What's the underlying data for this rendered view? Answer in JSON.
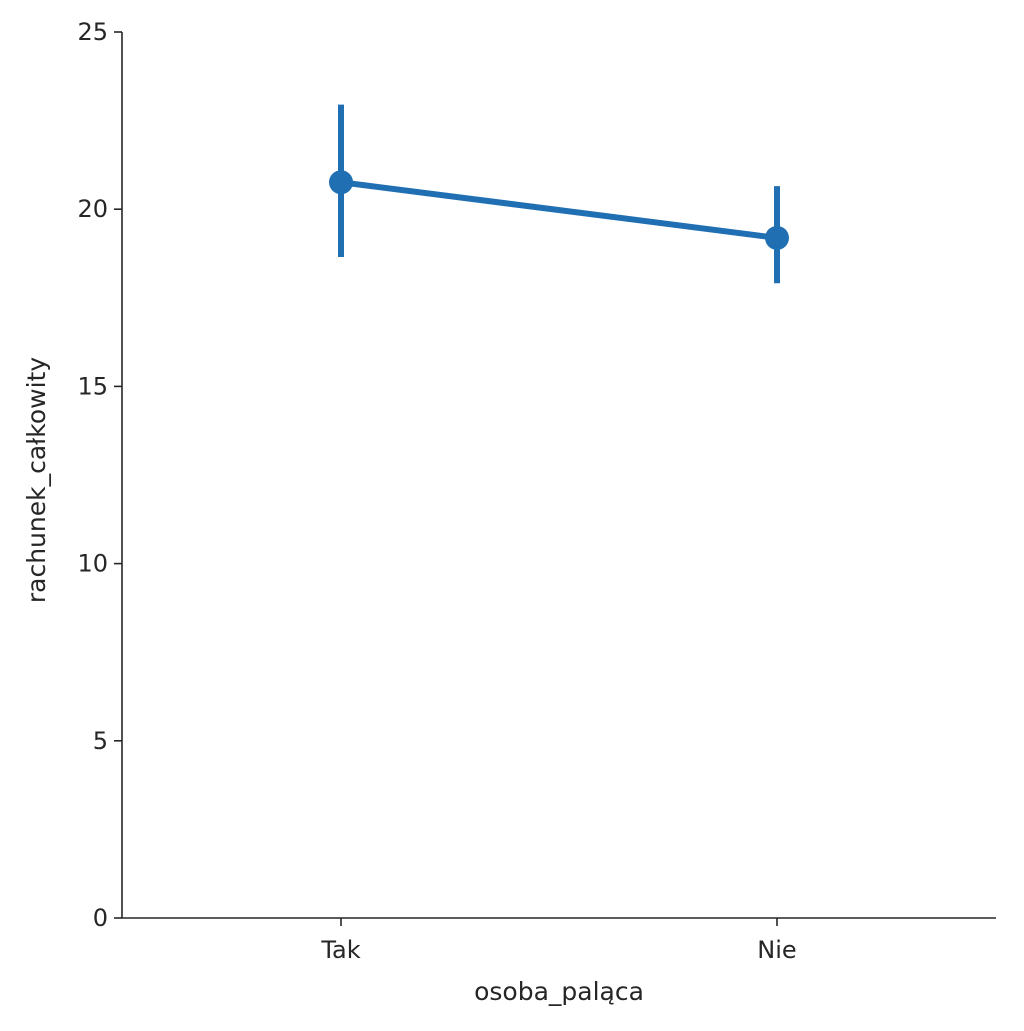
{
  "chart_data": {
    "type": "line",
    "title": "",
    "xlabel": "osoba_paląca",
    "ylabel": "rachunek_całkowity",
    "categories": [
      "Tak",
      "Nie"
    ],
    "series": [
      {
        "values": [
          20.76,
          19.19
        ],
        "ci_low": [
          18.65,
          17.91
        ],
        "ci_high": [
          22.95,
          20.65
        ],
        "color": "#1f6fb2"
      }
    ],
    "ylim": [
      0,
      25
    ],
    "yticks": [
      0,
      5,
      10,
      15,
      20,
      25
    ],
    "grid": false,
    "legend": "none"
  }
}
